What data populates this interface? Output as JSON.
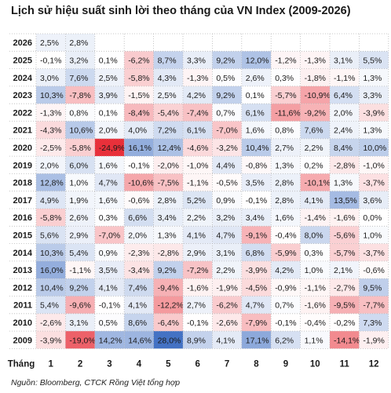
{
  "title": "Lịch sử hiệu suất sinh lời theo tháng của VN Index (2009-2026)",
  "source": "Nguồn: Bloomberg, CTCK Rồng Việt tổng hợp",
  "colors": {
    "positive_max": "#4472c4",
    "negative_max": "#e8303a",
    "neutral": "#ffffff"
  },
  "chart_data": {
    "type": "heatmap",
    "xlabel": "Tháng",
    "ylabel": "",
    "columns": [
      "1",
      "2",
      "3",
      "4",
      "5",
      "6",
      "7",
      "8",
      "9",
      "10",
      "11",
      "12"
    ],
    "rows": [
      "2026",
      "2025",
      "2024",
      "2023",
      "2022",
      "2021",
      "2020",
      "2019",
      "2018",
      "2017",
      "2016",
      "2015",
      "2014",
      "2013",
      "2012",
      "2011",
      "2010",
      "2009"
    ],
    "values": [
      [
        2.5,
        2.8,
        null,
        null,
        null,
        null,
        null,
        null,
        null,
        null,
        null,
        null
      ],
      [
        -0.1,
        3.2,
        0.1,
        -6.2,
        8.7,
        3.3,
        9.2,
        12.0,
        -1.2,
        -1.3,
        3.1,
        5.5
      ],
      [
        3.0,
        7.6,
        2.5,
        -5.8,
        4.3,
        -1.3,
        0.5,
        2.6,
        0.3,
        -1.8,
        -1.1,
        1.3
      ],
      [
        10.3,
        -7.8,
        3.9,
        -1.5,
        2.5,
        4.2,
        9.2,
        0.1,
        -5.7,
        -10.9,
        6.4,
        3.3
      ],
      [
        -1.3,
        0.8,
        0.1,
        -8.4,
        -5.4,
        -7.4,
        0.7,
        6.1,
        -11.6,
        -9.2,
        2.0,
        -3.9
      ],
      [
        -4.3,
        10.6,
        2.0,
        4.0,
        7.2,
        6.1,
        -7.0,
        1.6,
        0.8,
        7.6,
        2.4,
        1.3
      ],
      [
        -2.5,
        -5.8,
        -24.9,
        16.1,
        12.4,
        -4.6,
        -3.2,
        10.4,
        2.7,
        2.2,
        8.4,
        10.0
      ],
      [
        2.0,
        6.0,
        1.6,
        -0.1,
        -2.0,
        -1.0,
        4.4,
        -0.8,
        1.3,
        0.2,
        -2.8,
        -1.0
      ],
      [
        12.8,
        1.0,
        4.7,
        -10.6,
        -7.5,
        -1.1,
        -0.5,
        3.5,
        2.8,
        -10.1,
        1.3,
        -3.7
      ],
      [
        4.9,
        1.9,
        1.6,
        -0.6,
        2.8,
        5.2,
        0.9,
        -0.1,
        2.8,
        4.1,
        13.5,
        3.6
      ],
      [
        -5.8,
        2.6,
        0.3,
        6.6,
        3.4,
        2.2,
        3.2,
        3.4,
        1.6,
        -1.4,
        -1.6,
        0.0
      ],
      [
        5.6,
        2.9,
        -7.0,
        2.0,
        1.3,
        4.1,
        4.7,
        -9.1,
        -0.4,
        8.0,
        -5.6,
        1.0
      ],
      [
        10.3,
        5.4,
        0.9,
        -2.3,
        -2.8,
        2.9,
        3.1,
        6.8,
        -5.9,
        0.3,
        -5.7,
        -3.7
      ],
      [
        16.0,
        -1.1,
        3.5,
        -3.4,
        9.2,
        -7.2,
        2.2,
        -3.9,
        4.2,
        1.0,
        2.1,
        -0.6
      ],
      [
        10.4,
        9.2,
        4.1,
        7.4,
        -9.4,
        -1.6,
        -1.9,
        -4.5,
        -0.9,
        -1.1,
        -2.7,
        9.5
      ],
      [
        5.4,
        -9.6,
        -0.1,
        4.1,
        -12.2,
        2.7,
        -6.2,
        4.7,
        0.7,
        -1.6,
        -9.5,
        -7.7
      ],
      [
        -2.6,
        3.1,
        0.5,
        8.6,
        -6.4,
        -0.1,
        -2.6,
        -7.9,
        -0.1,
        -0.4,
        -0.2,
        7.3
      ],
      [
        -3.9,
        -19.0,
        14.2,
        14.6,
        28.0,
        8.9,
        4.1,
        17.1,
        6.2,
        1.1,
        -14.1,
        -1.9
      ]
    ]
  }
}
